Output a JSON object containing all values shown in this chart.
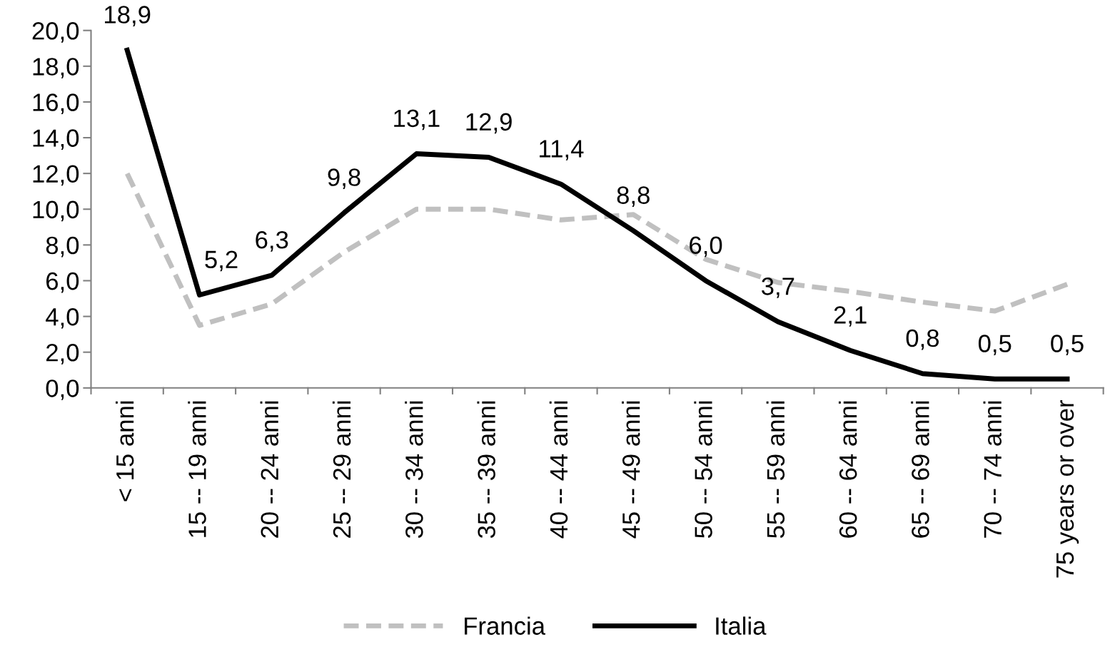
{
  "chart_data": {
    "type": "line",
    "categories": [
      "< 15 anni",
      "15 -- 19 anni",
      "20 -- 24 anni",
      "25 -- 29 anni",
      "30 -- 34 anni",
      "35 -- 39 anni",
      "40 -- 44 anni",
      "45 -- 49 anni",
      "50 -- 54 anni",
      "55 -- 59 anni",
      "60 -- 64 anni",
      "65 -- 69 anni",
      "70 -- 74 anni",
      "75 years or over"
    ],
    "series": [
      {
        "name": "Francia",
        "color": "#c0c0c0",
        "line_style": "dashed",
        "values": [
          12.0,
          3.5,
          4.7,
          7.6,
          10.0,
          10.0,
          9.4,
          9.7,
          7.2,
          5.9,
          5.4,
          4.8,
          4.3,
          5.8
        ]
      },
      {
        "name": "Italia",
        "color": "#000000",
        "line_style": "solid",
        "values": [
          18.9,
          5.2,
          6.3,
          9.8,
          13.1,
          12.9,
          11.4,
          8.8,
          6.0,
          3.7,
          2.1,
          0.8,
          0.5,
          0.5
        ],
        "value_labels": [
          "18,9",
          "5,2",
          "6,3",
          "9,8",
          "13,1",
          "12,9",
          "11,4",
          "8,8",
          "6,0",
          "3,7",
          "2,1",
          "0,8",
          "0,5",
          "0,5"
        ]
      }
    ],
    "ylim": [
      0,
      20
    ],
    "yticks": [
      {
        "value": 0,
        "label": "0,0"
      },
      {
        "value": 2,
        "label": "2,0"
      },
      {
        "value": 4,
        "label": "4,0"
      },
      {
        "value": 6,
        "label": "6,0"
      },
      {
        "value": 8,
        "label": "8,0"
      },
      {
        "value": 10,
        "label": "10,0"
      },
      {
        "value": 12,
        "label": "12,0"
      },
      {
        "value": 14,
        "label": "14,0"
      },
      {
        "value": 16,
        "label": "16,0"
      },
      {
        "value": 18,
        "label": "18,0"
      },
      {
        "value": 20,
        "label": "20,0"
      }
    ],
    "grid": false,
    "legend": "bottom",
    "marker": "none"
  }
}
